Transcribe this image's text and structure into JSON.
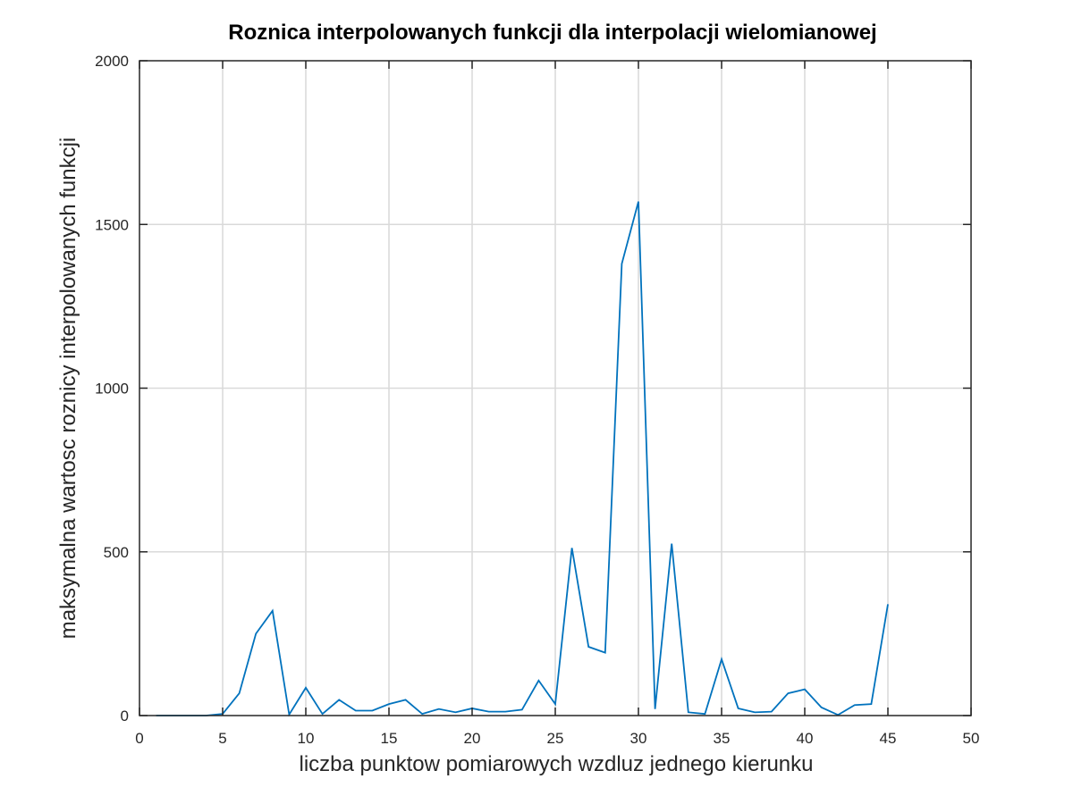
{
  "chart_data": {
    "type": "line",
    "title": "Roznica interpolowanych funkcji dla interpolacji wielomianowej",
    "xlabel": "liczba punktow pomiarowych wzdluz jednego kierunku",
    "ylabel": "maksymalna wartosc roznicy interpolowanych funkcji",
    "xlim": [
      0,
      50
    ],
    "ylim": [
      0,
      2000
    ],
    "xticks": [
      0,
      5,
      10,
      15,
      20,
      25,
      30,
      35,
      40,
      45,
      50
    ],
    "yticks": [
      0,
      500,
      1000,
      1500,
      2000
    ],
    "xtick_labels": [
      "0",
      "5",
      "10",
      "15",
      "20",
      "25",
      "30",
      "35",
      "40",
      "45",
      "50"
    ],
    "ytick_labels": [
      "0",
      "500",
      "1000",
      "1500",
      "2000"
    ],
    "grid": true,
    "series": [
      {
        "color": "#0072bd",
        "x": [
          1,
          2,
          3,
          4,
          5,
          6,
          7,
          8,
          9,
          10,
          11,
          12,
          13,
          14,
          15,
          16,
          17,
          18,
          19,
          20,
          21,
          22,
          23,
          24,
          25,
          26,
          27,
          28,
          29,
          30,
          31,
          32,
          33,
          34,
          35,
          36,
          37,
          38,
          39,
          40,
          41,
          42,
          43,
          44,
          45
        ],
        "y": [
          0,
          0,
          0,
          0,
          5,
          68,
          250,
          320,
          3,
          85,
          5,
          48,
          15,
          15,
          35,
          48,
          5,
          20,
          10,
          22,
          12,
          12,
          18,
          107,
          35,
          512,
          210,
          192,
          1380,
          1570,
          20,
          525,
          10,
          5,
          172,
          22,
          10,
          12,
          68,
          80,
          25,
          2,
          32,
          35,
          340
        ]
      }
    ]
  }
}
